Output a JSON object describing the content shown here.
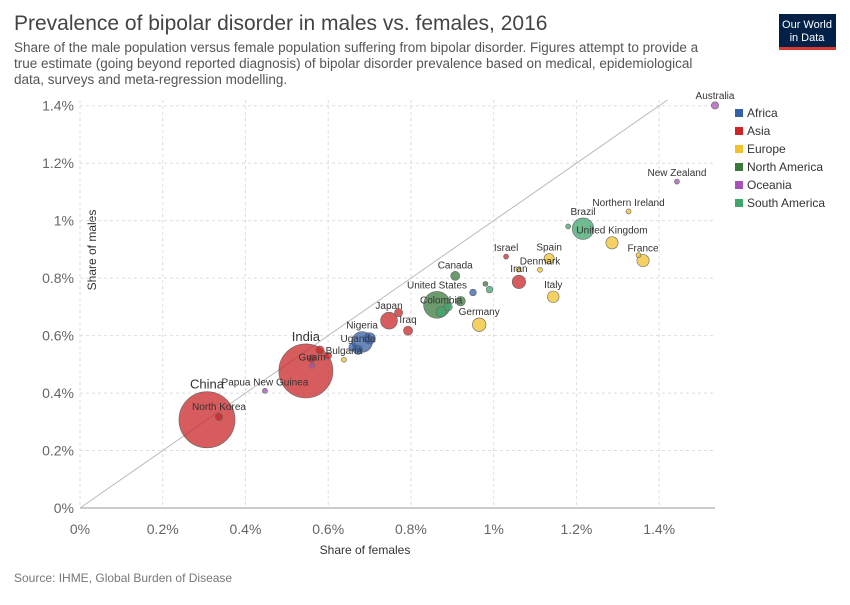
{
  "chart_data": {
    "type": "scatter",
    "title": "Prevalence of bipolar disorder in males vs. females, 2016",
    "subtitle": [
      "Share of the male population versus female population suffering from bipolar disorder. Figures attempt to provide a",
      "true estimate (going beyond reported diagnosis) of bipolar disorder prevalence based on medical, epidemiological",
      "data, surveys and meta-regression modelling."
    ],
    "x_label": "Share of females",
    "y_label": "Share of males",
    "source": "Source: IHME, Global Burden of Disease",
    "logo": [
      "Our World",
      "in Data"
    ],
    "xlim": [
      0,
      1.535
    ],
    "ylim": [
      0,
      1.42
    ],
    "xticks": [
      {
        "value": 0,
        "label": "0%"
      },
      {
        "value": 0.2,
        "label": "0.2%"
      },
      {
        "value": 0.4,
        "label": "0.4%"
      },
      {
        "value": 0.6,
        "label": "0.6%"
      },
      {
        "value": 0.8,
        "label": "0.8%"
      },
      {
        "value": 1,
        "label": "1%"
      },
      {
        "value": 1.2,
        "label": "1.2%"
      },
      {
        "value": 1.4,
        "label": "1.4%"
      }
    ],
    "yticks": [
      {
        "value": 0,
        "label": "0%"
      },
      {
        "value": 0.2,
        "label": "0.2%"
      },
      {
        "value": 0.4,
        "label": "0.4%"
      },
      {
        "value": 0.6,
        "label": "0.6%"
      },
      {
        "value": 0.8,
        "label": "0.8%"
      },
      {
        "value": 1,
        "label": "1%"
      },
      {
        "value": 1.2,
        "label": "1.2%"
      },
      {
        "value": 1.4,
        "label": "1.4%"
      }
    ],
    "grid": true,
    "series": [
      {
        "name": "Africa",
        "color": "#3360a9",
        "x": [
          0.682,
          0.672,
          0.66,
          0.7,
          0.95
        ],
        "y": [
          0.578,
          0.551,
          0.56,
          0.59,
          0.75
        ],
        "size": [
          190,
          40,
          30,
          60,
          20
        ],
        "labels": [
          "Nigeria",
          "Uganda",
          null,
          null,
          null
        ]
      },
      {
        "name": "Asia",
        "color": "#ca2628",
        "x": [
          0.307,
          0.336,
          0.546,
          0.747,
          0.793,
          1.03,
          1.061,
          0.58,
          0.6,
          0.77,
          0.56
        ],
        "y": [
          0.307,
          0.317,
          0.477,
          0.652,
          0.617,
          0.875,
          0.787,
          0.55,
          0.53,
          0.68,
          0.52
        ],
        "size": [
          1400,
          25,
          1300,
          127,
          37,
          8,
          80,
          30,
          20,
          30,
          25
        ],
        "labels": [
          "China",
          "North Korea",
          "India",
          "Japan",
          "Iraq",
          "Israel",
          "Iran",
          null,
          null,
          null,
          null
        ]
      },
      {
        "name": "Europe",
        "color": "#f2c12e",
        "x": [
          1.286,
          1.361,
          1.134,
          1.112,
          1.144,
          0.965,
          0.638,
          1.326,
          1.35,
          1.06
        ],
        "y": [
          0.923,
          0.861,
          0.868,
          0.829,
          0.735,
          0.638,
          0.516,
          1.032,
          0.88,
          0.83
        ],
        "size": [
          66,
          67,
          46,
          6,
          60,
          82,
          7,
          2,
          5,
          10
        ],
        "labels": [
          "United Kingdom",
          "France",
          "Spain",
          "Denmark",
          "Italy",
          "Germany",
          "Bulgaria",
          "Northern Ireland",
          null,
          null
        ]
      },
      {
        "name": "North America",
        "color": "#3b7a3c",
        "x": [
          0.907,
          0.863,
          0.92,
          0.98
        ],
        "y": [
          0.808,
          0.707,
          0.72,
          0.78
        ],
        "size": [
          36,
          320,
          40,
          10
        ],
        "labels": [
          "Canada",
          "United States",
          null,
          null
        ]
      },
      {
        "name": "Oceania",
        "color": "#a652ba",
        "x": [
          1.535,
          1.443,
          0.561,
          0.447
        ],
        "y": [
          1.401,
          1.136,
          0.495,
          0.408
        ],
        "size": [
          24,
          5,
          2,
          8
        ],
        "labels": [
          "Australia",
          "New Zealand",
          "Guam",
          "Papua New Guinea"
        ]
      },
      {
        "name": "South America",
        "color": "#3fa56b",
        "x": [
          1.216,
          0.873,
          0.89,
          0.99,
          1.18
        ],
        "y": [
          0.972,
          0.683,
          0.7,
          0.76,
          0.98
        ],
        "size": [
          205,
          48,
          30,
          20,
          3
        ],
        "labels": [
          "Brazil",
          "Colombia",
          null,
          null,
          null
        ]
      }
    ]
  }
}
